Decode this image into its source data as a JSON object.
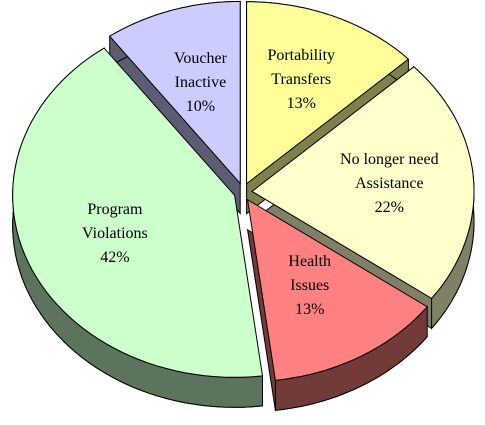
{
  "chart_data": {
    "type": "pie",
    "categories": [
      "Portability Transfers",
      "No longer need Assistance",
      "Health Issues",
      "Program Violations",
      "Voucher Inactive"
    ],
    "values": [
      13,
      22,
      13,
      42,
      10
    ],
    "value_labels": [
      "13%",
      "22%",
      "13%",
      "42%",
      "10%"
    ],
    "colors": [
      "#ffff99",
      "#ffffcc",
      "#ff8080",
      "#ccffcc",
      "#ccccff"
    ],
    "start_angle": 0,
    "direction": "clockwise",
    "exploded": true,
    "three_d": true
  }
}
